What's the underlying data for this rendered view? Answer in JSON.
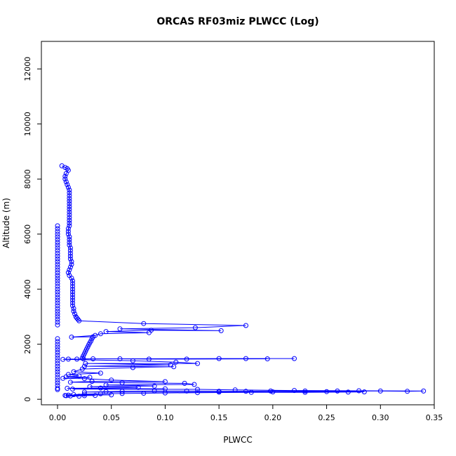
{
  "chart_data": {
    "type": "scatter",
    "title": "ORCAS RF03miz PLWCC (Log)",
    "xlabel": "PLWCC",
    "ylabel": "Altitude (m)",
    "xlim": [
      -0.015,
      0.35
    ],
    "ylim": [
      -200,
      13000
    ],
    "x_ticks": [
      0.0,
      0.05,
      0.1,
      0.15,
      0.2,
      0.25,
      0.3,
      0.35
    ],
    "x_tick_labels": [
      "0.00",
      "0.05",
      "0.10",
      "0.15",
      "0.20",
      "0.25",
      "0.30",
      "0.35"
    ],
    "y_ticks": [
      0,
      2000,
      4000,
      6000,
      8000,
      10000,
      12000
    ],
    "y_tick_labels": [
      "0",
      "2000",
      "4000",
      "6000",
      "8000",
      "10000",
      "12000"
    ],
    "grid": false,
    "colors": {
      "series": "#0000ff",
      "axis": "#000000"
    },
    "series": [
      {
        "style": "points-and-lines",
        "points": [
          [
            0.004,
            8480
          ],
          [
            0.007,
            8420
          ],
          [
            0.009,
            8380
          ],
          [
            0.01,
            8320
          ],
          [
            0.008,
            8200
          ],
          [
            0.007,
            8100
          ],
          [
            0.007,
            8000
          ],
          [
            0.008,
            7900
          ],
          [
            0.009,
            7800
          ],
          [
            0.01,
            7700
          ],
          [
            0.011,
            7600
          ],
          [
            0.011,
            7500
          ],
          [
            0.011,
            7400
          ],
          [
            0.011,
            7300
          ],
          [
            0.011,
            7200
          ],
          [
            0.011,
            7100
          ],
          [
            0.011,
            7000
          ],
          [
            0.011,
            6900
          ],
          [
            0.011,
            6800
          ],
          [
            0.011,
            6700
          ],
          [
            0.011,
            6600
          ],
          [
            0.011,
            6500
          ],
          [
            0.011,
            6400
          ],
          [
            0.011,
            6300
          ],
          [
            0.01,
            6200
          ],
          [
            0.01,
            6100
          ],
          [
            0.01,
            6000
          ],
          [
            0.011,
            5900
          ],
          [
            0.011,
            5800
          ],
          [
            0.011,
            5700
          ],
          [
            0.011,
            5600
          ],
          [
            0.012,
            5500
          ],
          [
            0.012,
            5400
          ],
          [
            0.012,
            5300
          ],
          [
            0.012,
            5200
          ],
          [
            0.012,
            5100
          ],
          [
            0.013,
            5000
          ],
          [
            0.013,
            4900
          ],
          [
            0.012,
            4800
          ],
          [
            0.011,
            4700
          ],
          [
            0.01,
            4600
          ],
          [
            0.011,
            4500
          ],
          [
            0.013,
            4400
          ],
          [
            0.014,
            4300
          ],
          [
            0.014,
            4200
          ],
          [
            0.014,
            4100
          ],
          [
            0.014,
            4000
          ],
          [
            0.014,
            3900
          ],
          [
            0.014,
            3800
          ],
          [
            0.014,
            3700
          ],
          [
            0.014,
            3600
          ],
          [
            0.014,
            3500
          ],
          [
            0.014,
            3400
          ],
          [
            0.015,
            3300
          ],
          [
            0.015,
            3200
          ],
          [
            0.016,
            3100
          ],
          [
            0.017,
            3000
          ],
          [
            0.018,
            2950
          ],
          [
            0.019,
            2900
          ],
          [
            0.02,
            2850
          ],
          [
            0.08,
            2750
          ],
          [
            0.175,
            2680
          ],
          [
            0.128,
            2600
          ],
          [
            0.058,
            2560
          ],
          [
            0.152,
            2490
          ],
          [
            0.087,
            2510
          ],
          [
            0.045,
            2460
          ],
          [
            0.085,
            2420
          ],
          [
            0.04,
            2380
          ],
          [
            0.035,
            2320
          ],
          [
            0.013,
            2260
          ],
          [
            0.033,
            2270
          ],
          [
            0.032,
            2200
          ],
          [
            0.031,
            2120
          ],
          [
            0.03,
            2050
          ],
          [
            0.029,
            1980
          ],
          [
            0.028,
            1900
          ],
          [
            0.027,
            1820
          ],
          [
            0.026,
            1740
          ],
          [
            0.025,
            1660
          ],
          [
            0.024,
            1580
          ],
          [
            0.023,
            1500
          ],
          [
            0.024,
            1470
          ],
          [
            0.15,
            1480
          ],
          [
            0.22,
            1480
          ],
          [
            0.175,
            1480
          ],
          [
            0.195,
            1470
          ],
          [
            0.12,
            1460
          ],
          [
            0.085,
            1460
          ],
          [
            0.058,
            1470
          ],
          [
            0.033,
            1470
          ],
          [
            0.018,
            1460
          ],
          [
            0.01,
            1460
          ],
          [
            0.005,
            1450
          ],
          [
            0.07,
            1400
          ],
          [
            0.11,
            1350
          ],
          [
            0.13,
            1300
          ],
          [
            0.026,
            1300
          ],
          [
            0.105,
            1250
          ],
          [
            0.025,
            1200
          ],
          [
            0.108,
            1180
          ],
          [
            0.07,
            1150
          ],
          [
            0.023,
            1100
          ],
          [
            0.015,
            1000
          ],
          [
            0.04,
            950
          ],
          [
            0.01,
            900
          ],
          [
            0.02,
            850
          ],
          [
            0.008,
            820
          ],
          [
            0.03,
            800
          ],
          [
            0.005,
            760
          ],
          [
            0.025,
            750
          ],
          [
            0.05,
            700
          ],
          [
            0.1,
            640
          ],
          [
            0.032,
            650
          ],
          [
            0.012,
            620
          ],
          [
            0.06,
            600
          ],
          [
            0.118,
            580
          ],
          [
            0.127,
            540
          ],
          [
            0.045,
            520
          ],
          [
            0.09,
            480
          ],
          [
            0.03,
            460
          ],
          [
            0.075,
            430
          ],
          [
            0.04,
            410
          ],
          [
            0.009,
            400
          ],
          [
            0.1,
            380
          ],
          [
            0.014,
            370
          ],
          [
            0.13,
            360
          ],
          [
            0.165,
            340
          ],
          [
            0.22,
            320
          ],
          [
            0.28,
            310
          ],
          [
            0.34,
            300
          ],
          [
            0.325,
            290
          ],
          [
            0.3,
            300
          ],
          [
            0.26,
            300
          ],
          [
            0.23,
            300
          ],
          [
            0.198,
            300
          ],
          [
            0.175,
            290
          ],
          [
            0.15,
            290
          ],
          [
            0.12,
            300
          ],
          [
            0.09,
            300
          ],
          [
            0.06,
            290
          ],
          [
            0.045,
            280
          ],
          [
            0.025,
            260
          ],
          [
            0.15,
            260
          ],
          [
            0.2,
            270
          ],
          [
            0.25,
            280
          ],
          [
            0.285,
            270
          ],
          [
            0.27,
            260
          ],
          [
            0.23,
            250
          ],
          [
            0.18,
            250
          ],
          [
            0.13,
            240
          ],
          [
            0.1,
            230
          ],
          [
            0.08,
            220
          ],
          [
            0.06,
            210
          ],
          [
            0.04,
            200
          ],
          [
            0.025,
            190
          ],
          [
            0.015,
            170
          ],
          [
            0.05,
            160
          ],
          [
            0.01,
            150
          ],
          [
            0.035,
            140
          ],
          [
            0.007,
            140
          ],
          [
            0.025,
            130
          ],
          [
            0.012,
            120
          ],
          [
            0.02,
            110
          ],
          [
            0.008,
            130
          ]
        ]
      },
      {
        "style": "points",
        "points": [
          [
            0.0,
            6300
          ],
          [
            0.0,
            6200
          ],
          [
            0.0,
            6100
          ],
          [
            0.0,
            6000
          ],
          [
            0.0,
            5900
          ],
          [
            0.0,
            5800
          ],
          [
            0.0,
            5700
          ],
          [
            0.0,
            5600
          ],
          [
            0.0,
            5500
          ],
          [
            0.0,
            5400
          ],
          [
            0.0,
            5300
          ],
          [
            0.0,
            5200
          ],
          [
            0.0,
            5100
          ],
          [
            0.0,
            5000
          ],
          [
            0.0,
            4900
          ],
          [
            0.0,
            4800
          ],
          [
            0.0,
            4700
          ],
          [
            0.0,
            4600
          ],
          [
            0.0,
            4500
          ],
          [
            0.0,
            4400
          ],
          [
            0.0,
            4300
          ],
          [
            0.0,
            4200
          ],
          [
            0.0,
            4100
          ],
          [
            0.0,
            4000
          ],
          [
            0.0,
            3900
          ],
          [
            0.0,
            3800
          ],
          [
            0.0,
            3700
          ],
          [
            0.0,
            3600
          ],
          [
            0.0,
            3500
          ],
          [
            0.0,
            3400
          ],
          [
            0.0,
            3300
          ],
          [
            0.0,
            3200
          ],
          [
            0.0,
            3100
          ],
          [
            0.0,
            3000
          ],
          [
            0.0,
            2900
          ],
          [
            0.0,
            2800
          ],
          [
            0.0,
            2700
          ],
          [
            0.0,
            2200
          ],
          [
            0.0,
            2100
          ],
          [
            0.0,
            2000
          ],
          [
            0.0,
            1900
          ],
          [
            0.0,
            1800
          ],
          [
            0.0,
            1700
          ],
          [
            0.0,
            1600
          ],
          [
            0.0,
            1500
          ],
          [
            0.0,
            1400
          ],
          [
            0.0,
            1300
          ],
          [
            0.0,
            1200
          ],
          [
            0.0,
            1100
          ],
          [
            0.0,
            1000
          ],
          [
            0.0,
            900
          ],
          [
            0.0,
            800
          ],
          [
            0.0,
            700
          ],
          [
            0.0,
            600
          ],
          [
            0.0,
            500
          ],
          [
            0.0,
            400
          ],
          [
            0.0,
            350
          ]
        ]
      }
    ]
  }
}
